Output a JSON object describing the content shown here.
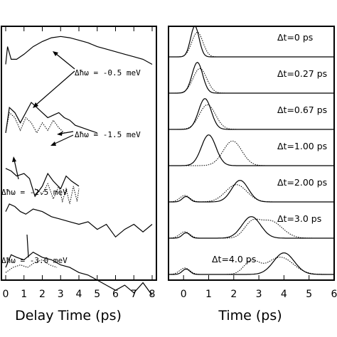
{
  "chart_data": [
    {
      "type": "line",
      "xlabel": "Delay Time (ps)",
      "ylabel": "",
      "xlim": [
        0,
        8
      ],
      "x_ticks": [
        "0",
        "1",
        "2",
        "3",
        "4",
        "5",
        "6",
        "7",
        "8"
      ],
      "annotations": [
        "Δħω = -0.5 meV",
        "Δħω = -1.5 meV",
        "Δħω = -2.5 meV",
        "Δħω = -3.0 meV"
      ],
      "series": [
        {
          "style": "solid",
          "offset": 0.8,
          "x": [
            0,
            0.1,
            0.3,
            0.6,
            1.0,
            1.5,
            2.0,
            2.5,
            3.0,
            3.5,
            4.0,
            4.5,
            5.0,
            5.5,
            6.0,
            6.5,
            7.0,
            7.5,
            8.0
          ],
          "y": [
            0.05,
            0.12,
            0.07,
            0.07,
            0.09,
            0.12,
            0.14,
            0.155,
            0.16,
            0.155,
            0.145,
            0.135,
            0.12,
            0.11,
            0.1,
            0.09,
            0.08,
            0.07,
            0.05
          ]
        },
        {
          "style": "solid",
          "offset": 0.56,
          "x": [
            0,
            0.2,
            0.5,
            0.8,
            1.1,
            1.4,
            1.7,
            2.0,
            2.3,
            2.6,
            2.9,
            3.2,
            3.5,
            3.8,
            4.2,
            4.6,
            5.0
          ],
          "y": [
            0.02,
            0.12,
            0.1,
            0.06,
            0.1,
            0.14,
            0.12,
            0.1,
            0.08,
            0.09,
            0.1,
            0.08,
            0.07,
            0.05,
            0.04,
            0.03,
            0.02
          ]
        },
        {
          "style": "dotted",
          "offset": 0.56,
          "x": [
            0,
            0.2,
            0.5,
            0.8,
            1.1,
            1.4,
            1.7,
            2.0,
            2.3,
            2.6,
            2.9,
            3.2
          ],
          "y": [
            0.02,
            0.1,
            0.08,
            0.03,
            0.08,
            0.06,
            0.02,
            0.06,
            0.03,
            0.07,
            0.04,
            0.02
          ]
        },
        {
          "style": "solid",
          "offset": 0.39,
          "x": [
            0,
            0.3,
            0.6,
            1.0,
            1.3,
            1.6,
            2.0,
            2.3,
            2.6,
            3.0,
            3.3,
            3.6,
            4.0
          ],
          "y": [
            0.05,
            0.04,
            0.02,
            0.03,
            0.01,
            -0.06,
            -0.02,
            0.03,
            0.0,
            -0.03,
            0.02,
            0.0,
            -0.02
          ]
        },
        {
          "style": "dotted",
          "offset": 0.39,
          "x": [
            1.6,
            2.0,
            2.3,
            2.6,
            2.9,
            3.1,
            3.3,
            3.5,
            3.7,
            3.9,
            4.0
          ],
          "y": [
            -0.03,
            -0.05,
            -0.01,
            -0.07,
            -0.02,
            -0.08,
            -0.03,
            -0.09,
            -0.02,
            -0.08,
            -0.03
          ]
        },
        {
          "style": "solid",
          "offset": 0.22,
          "x": [
            0,
            0.2,
            0.5,
            0.8,
            1.1,
            1.5,
            2.0,
            2.5,
            3.0,
            3.5,
            4.0,
            4.5,
            5.0,
            5.5,
            6.0,
            6.5,
            7.0,
            7.5,
            8.0
          ],
          "y": [
            0.05,
            0.08,
            0.07,
            0.05,
            0.04,
            0.06,
            0.05,
            0.03,
            0.02,
            0.01,
            0.0,
            0.01,
            -0.02,
            0.0,
            -0.05,
            -0.02,
            0.0,
            -0.03,
            0.0
          ]
        },
        {
          "style": "solid",
          "offset": 0.0,
          "x": [
            0,
            0.3,
            0.6,
            1.0,
            1.5,
            2.0,
            2.5,
            3.0,
            3.5,
            4.0,
            4.5,
            5.0,
            5.5,
            6.0,
            6.5,
            7.0,
            7.5,
            8.0
          ],
          "y": [
            0.05,
            0.1,
            0.09,
            0.08,
            0.11,
            0.09,
            0.08,
            0.06,
            0.05,
            0.03,
            0.02,
            0.0,
            -0.02,
            -0.04,
            -0.02,
            -0.05,
            -0.01,
            -0.06
          ]
        },
        {
          "style": "dotted",
          "offset": 0.0,
          "x": [
            0,
            0.4,
            0.8,
            1.2,
            1.6,
            2.0,
            2.4,
            2.8
          ],
          "y": [
            0.03,
            0.05,
            0.06,
            0.05,
            0.07,
            0.08,
            0.06,
            0.05
          ]
        }
      ]
    },
    {
      "type": "line",
      "xlabel": "Time (ps)",
      "ylabel": "",
      "xlim": [
        -0.6,
        6
      ],
      "x_ticks": [
        "0",
        "1",
        "2",
        "3",
        "4",
        "5",
        "6"
      ],
      "panel_labels": [
        "Δt=0  ps",
        "Δt=0.27  ps",
        "Δt=0.67  ps",
        "Δt=1.00  ps",
        "Δt=2.00  ps",
        "Δt=3.0  ps",
        "Δt=4.0  ps"
      ],
      "peaks_solid": [
        0.45,
        0.55,
        0.85,
        1.0,
        2.25,
        2.7,
        4.0
      ],
      "peaks_dotted": [
        0.55,
        0.65,
        0.95,
        1.95,
        2.1,
        3.45,
        3.85
      ]
    }
  ]
}
